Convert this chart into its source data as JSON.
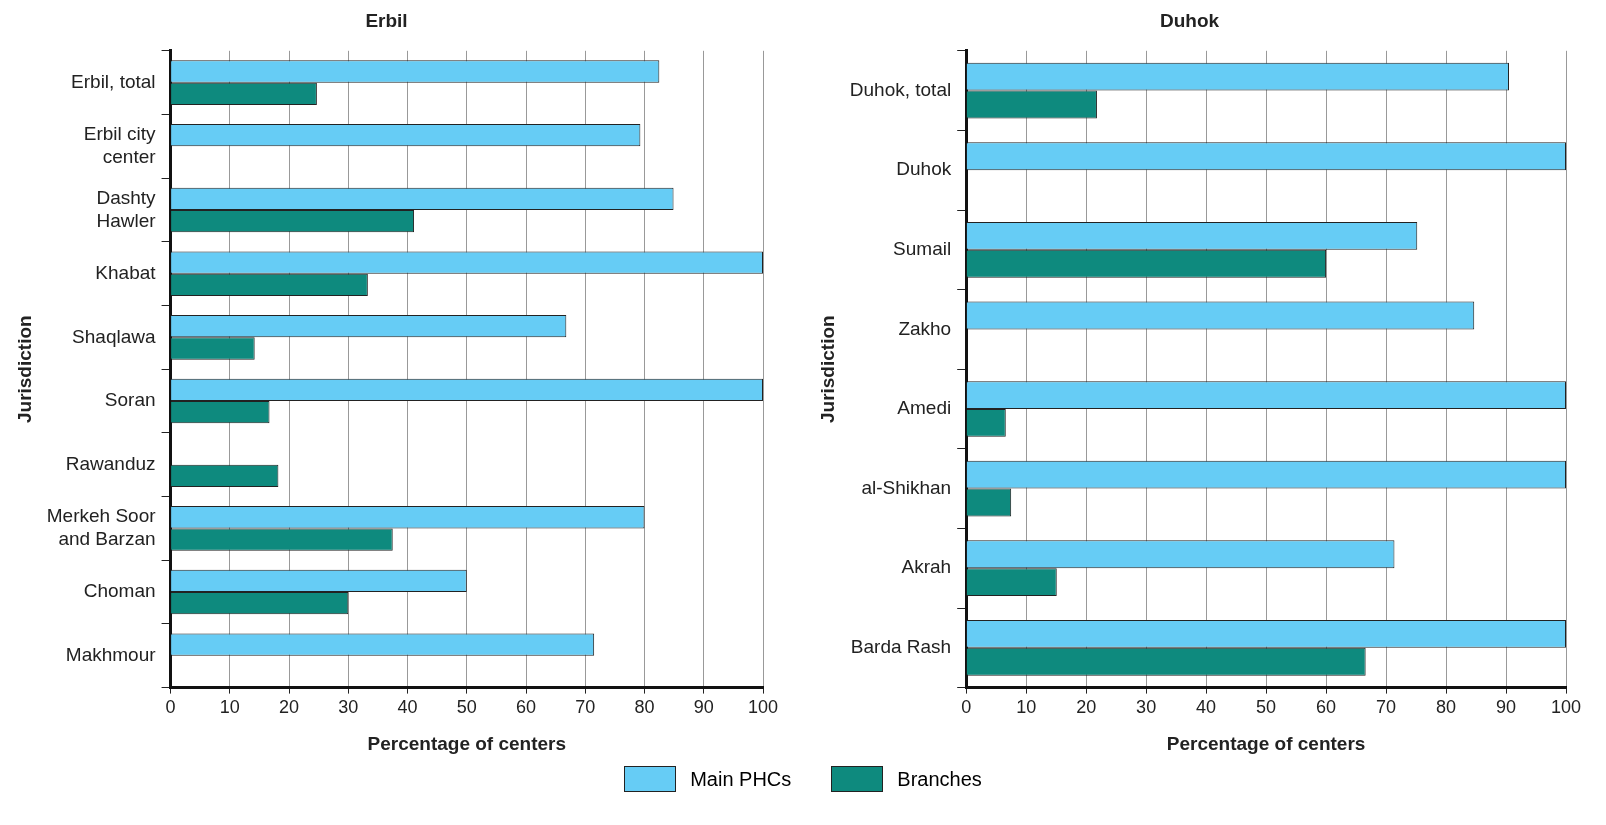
{
  "chart_data": [
    {
      "type": "bar",
      "orientation": "horizontal",
      "title": "Erbil",
      "xlabel": "Percentage of centers",
      "ylabel": "Jurisdiction",
      "categories": [
        "Erbil, total",
        "Erbil city center",
        "Dashty Hawler",
        "Khabat",
        "Shaqlawa",
        "Soran",
        "Rawanduz",
        "Merkeh Soor and Barzan",
        "Choman",
        "Makhmour"
      ],
      "series": [
        {
          "name": "Main PHCs",
          "color": "#66ccf5",
          "values": [
            82.5,
            79.3,
            84.9,
            100,
            66.8,
            100,
            null,
            80,
            50,
            71.5
          ]
        },
        {
          "name": "Branches",
          "color": "#0e8a7e",
          "values": [
            24.7,
            null,
            41.1,
            33.3,
            14.2,
            16.7,
            18.2,
            37.5,
            30,
            null
          ]
        }
      ],
      "xlim": [
        0,
        100
      ],
      "xticks": [
        0,
        10,
        20,
        30,
        40,
        50,
        60,
        70,
        80,
        90,
        100
      ],
      "grid": "x",
      "legend": "bottom"
    },
    {
      "type": "bar",
      "orientation": "horizontal",
      "title": "Duhok",
      "xlabel": "Percentage of centers",
      "ylabel": "Jurisdiction",
      "categories": [
        "Duhok, total",
        "Duhok",
        "Sumail",
        "Zakho",
        "Amedi",
        "al-Shikhan",
        "Akrah",
        "Barda Rash"
      ],
      "series": [
        {
          "color": "#66ccf5",
          "values": [
            90.5,
            100,
            75.2,
            84.7,
            100,
            100,
            71.4,
            100
          ]
        },
        {
          "color": "#0e8a7e",
          "values": [
            21.8,
            null,
            60,
            null,
            6.6,
            7.5,
            15.1,
            66.6
          ]
        }
      ],
      "xlim": [
        0,
        100
      ],
      "xticks": [
        0,
        10,
        20,
        30,
        40,
        50,
        60,
        70,
        80,
        90,
        100
      ],
      "grid": "x"
    }
  ]
}
